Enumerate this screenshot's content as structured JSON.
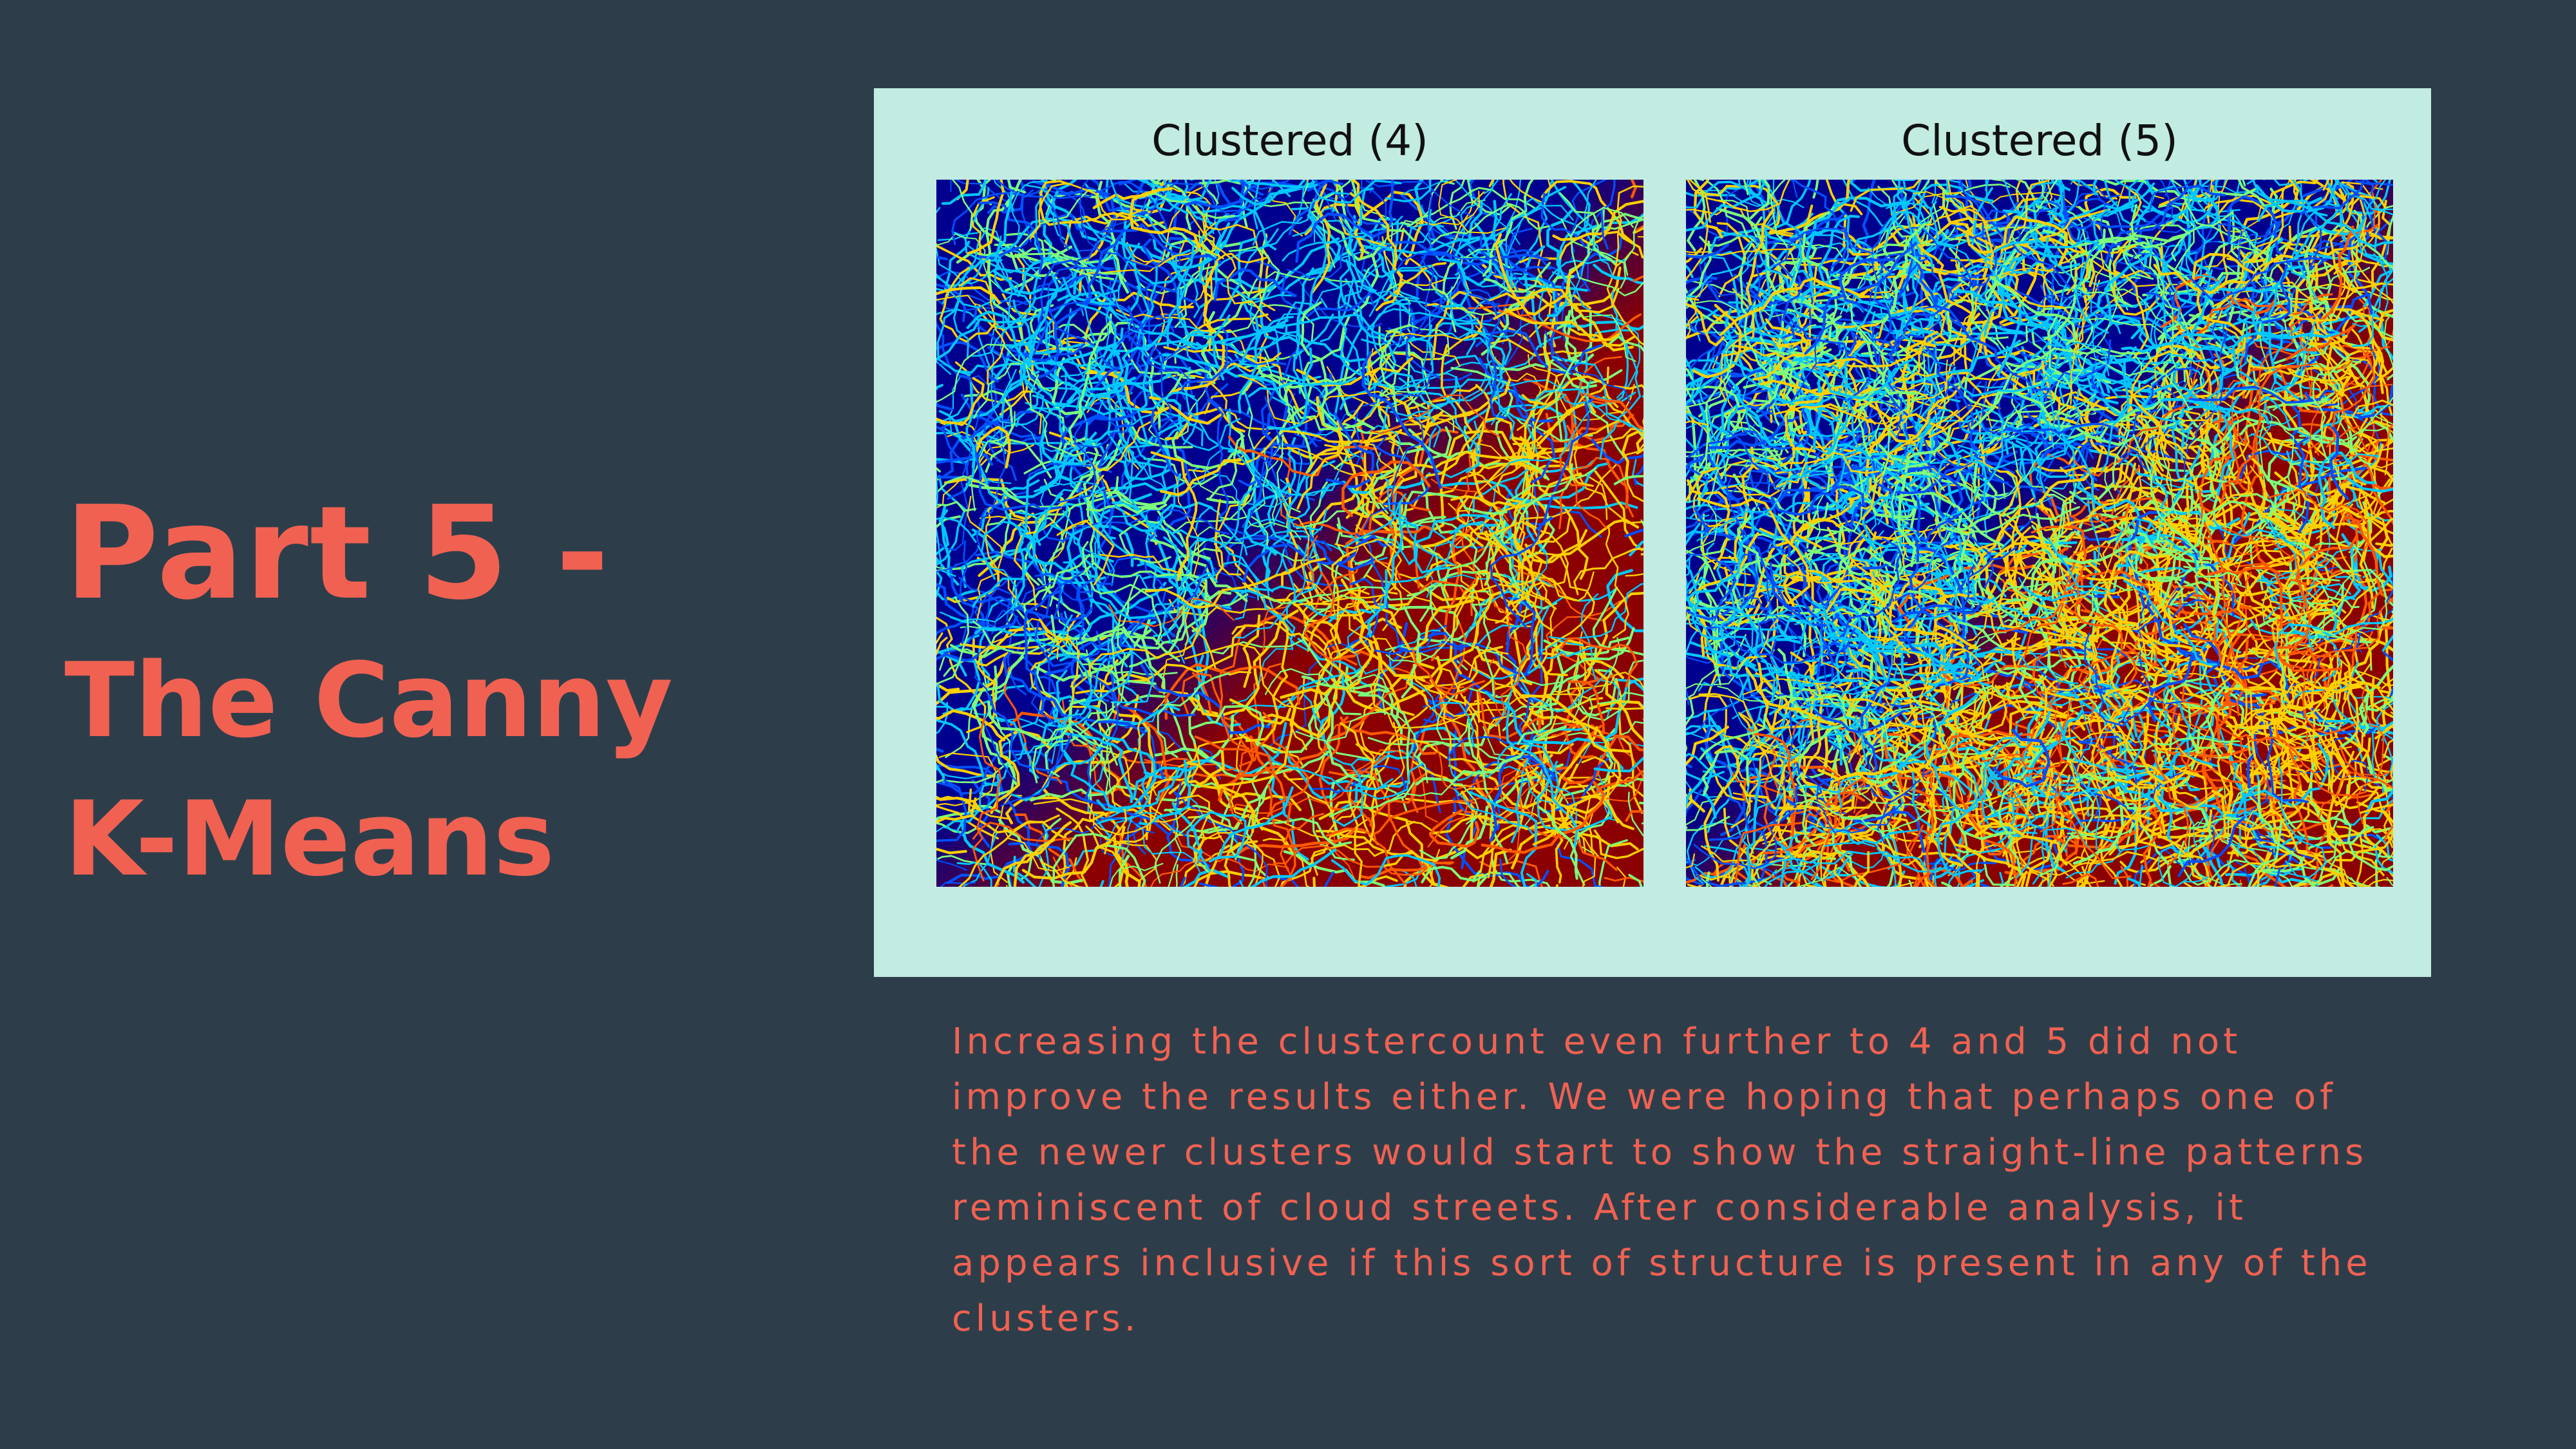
{
  "slide": {
    "title_line1": "Part 5 -",
    "title_line2": "The Canny",
    "title_line3": "K-Means",
    "description": "Increasing the clustercount even further to 4 and 5 did not improve the results either. We were hoping that perhaps one of the newer clusters would start to show the straight-line patterns reminiscent of cloud streets. After considerable analysis, it appears inclusive if this sort of structure is present in any of the clusters."
  },
  "figures": [
    {
      "title": "Clustered (4)",
      "clusters": 4
    },
    {
      "title": "Clustered (5)",
      "clusters": 5
    }
  ],
  "colors": {
    "background": "#2d3e4a",
    "accent": "#f16152",
    "panel": "#c2ebe1",
    "colormap": [
      "#00008f",
      "#0050ff",
      "#00c8ff",
      "#7dff7a",
      "#ffd000",
      "#ff5a00",
      "#8b0000"
    ]
  }
}
